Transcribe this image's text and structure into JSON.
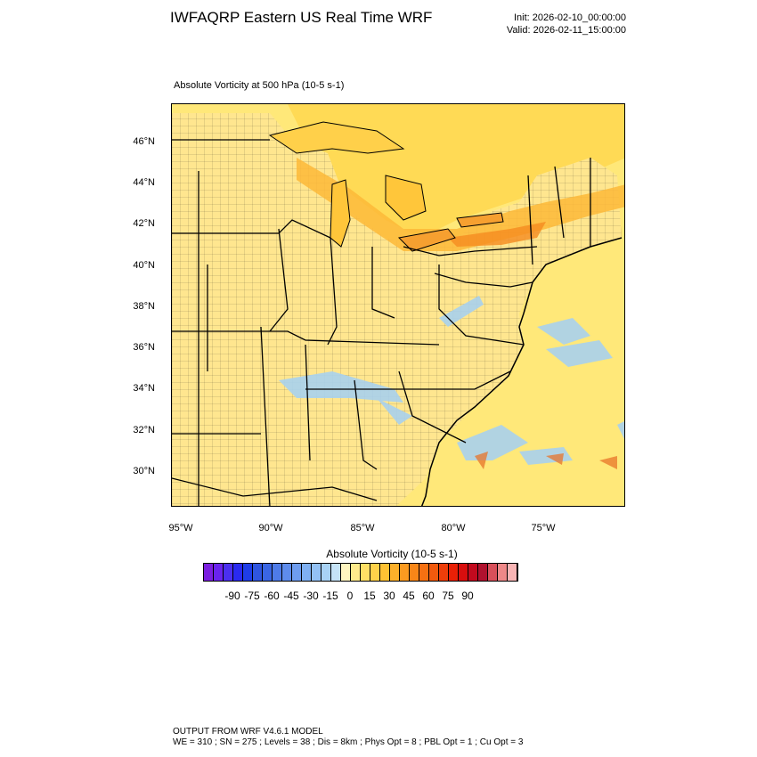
{
  "header": {
    "title": "IWFAQRP Eastern US Real Time WRF",
    "init": "Init: 2026-02-10_00:00:00",
    "valid": "Valid: 2026-02-11_15:00:00"
  },
  "field": {
    "label": "Absolute Vorticity at 500 hPa   (10-5 s-1)"
  },
  "map": {
    "lat_labels": [
      "46°N",
      "44°N",
      "42°N",
      "40°N",
      "38°N",
      "36°N",
      "34°N",
      "32°N",
      "30°N"
    ],
    "lon_labels": [
      "95°W",
      "90°W",
      "85°W",
      "80°W",
      "75°W"
    ],
    "colors": {
      "background": "#FFE166",
      "land": "#FFE9A0",
      "ridge": "#FDB838",
      "strong": "#F58B1F",
      "negative": "#A9D1EE",
      "borders": "#000000"
    }
  },
  "colorbar": {
    "title": "Absolute Vorticity  (10-5 s-1)",
    "labels": [
      "-90",
      "-75",
      "-60",
      "-45",
      "-30",
      "-15",
      "0",
      "15",
      "30",
      "45",
      "60",
      "75",
      "90"
    ],
    "colors": [
      "#7B1FE0",
      "#6A23EE",
      "#4B2FF0",
      "#2A2AF0",
      "#1F3DE8",
      "#2F55E0",
      "#3A66E4",
      "#4E7BE8",
      "#5E8CEC",
      "#6E9DF0",
      "#7FB0F2",
      "#93C1F4",
      "#A8D2F5",
      "#C5E3F7",
      "#FFF5C0",
      "#FFEB8C",
      "#FFE066",
      "#FFD24A",
      "#FFC233",
      "#FDB02A",
      "#FB9A20",
      "#F88618",
      "#F57012",
      "#F25A0E",
      "#EE3E0A",
      "#E82006",
      "#D80E0E",
      "#C20A1E",
      "#B0122E",
      "#D8505A",
      "#EE8888",
      "#F8B4B4"
    ]
  },
  "footer": {
    "line1": "OUTPUT FROM WRF V4.6.1 MODEL",
    "line2": "WE = 310 ; SN = 275 ; Levels = 38 ; Dis = 8km ; Phys Opt = 8 ; PBL Opt = 1 ; Cu Opt = 3"
  }
}
